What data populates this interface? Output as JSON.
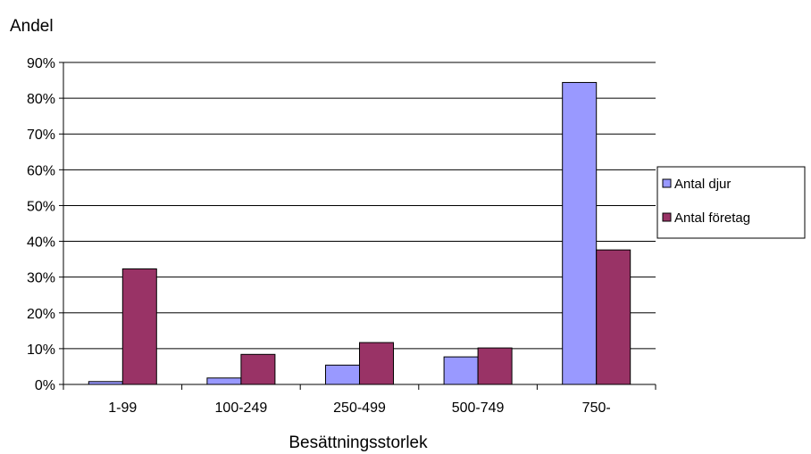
{
  "chart_data": {
    "type": "bar",
    "ylabel": "Andel",
    "xlabel": "Besättningsstorlek",
    "categories": [
      "1-99",
      "100-249",
      "250-499",
      "500-749",
      "750-"
    ],
    "series": [
      {
        "name": "Antal djur",
        "color": "#9999ff",
        "values": [
          0.8,
          1.8,
          5.4,
          7.7,
          84.4
        ]
      },
      {
        "name": "Antal företag",
        "color": "#993366",
        "values": [
          32.3,
          8.4,
          11.7,
          10.2,
          37.6
        ]
      }
    ],
    "ylim": [
      0,
      90
    ],
    "yticks": [
      "0%",
      "10%",
      "20%",
      "30%",
      "40%",
      "50%",
      "60%",
      "70%",
      "80%",
      "90%"
    ],
    "grid": true,
    "legend": "right"
  }
}
